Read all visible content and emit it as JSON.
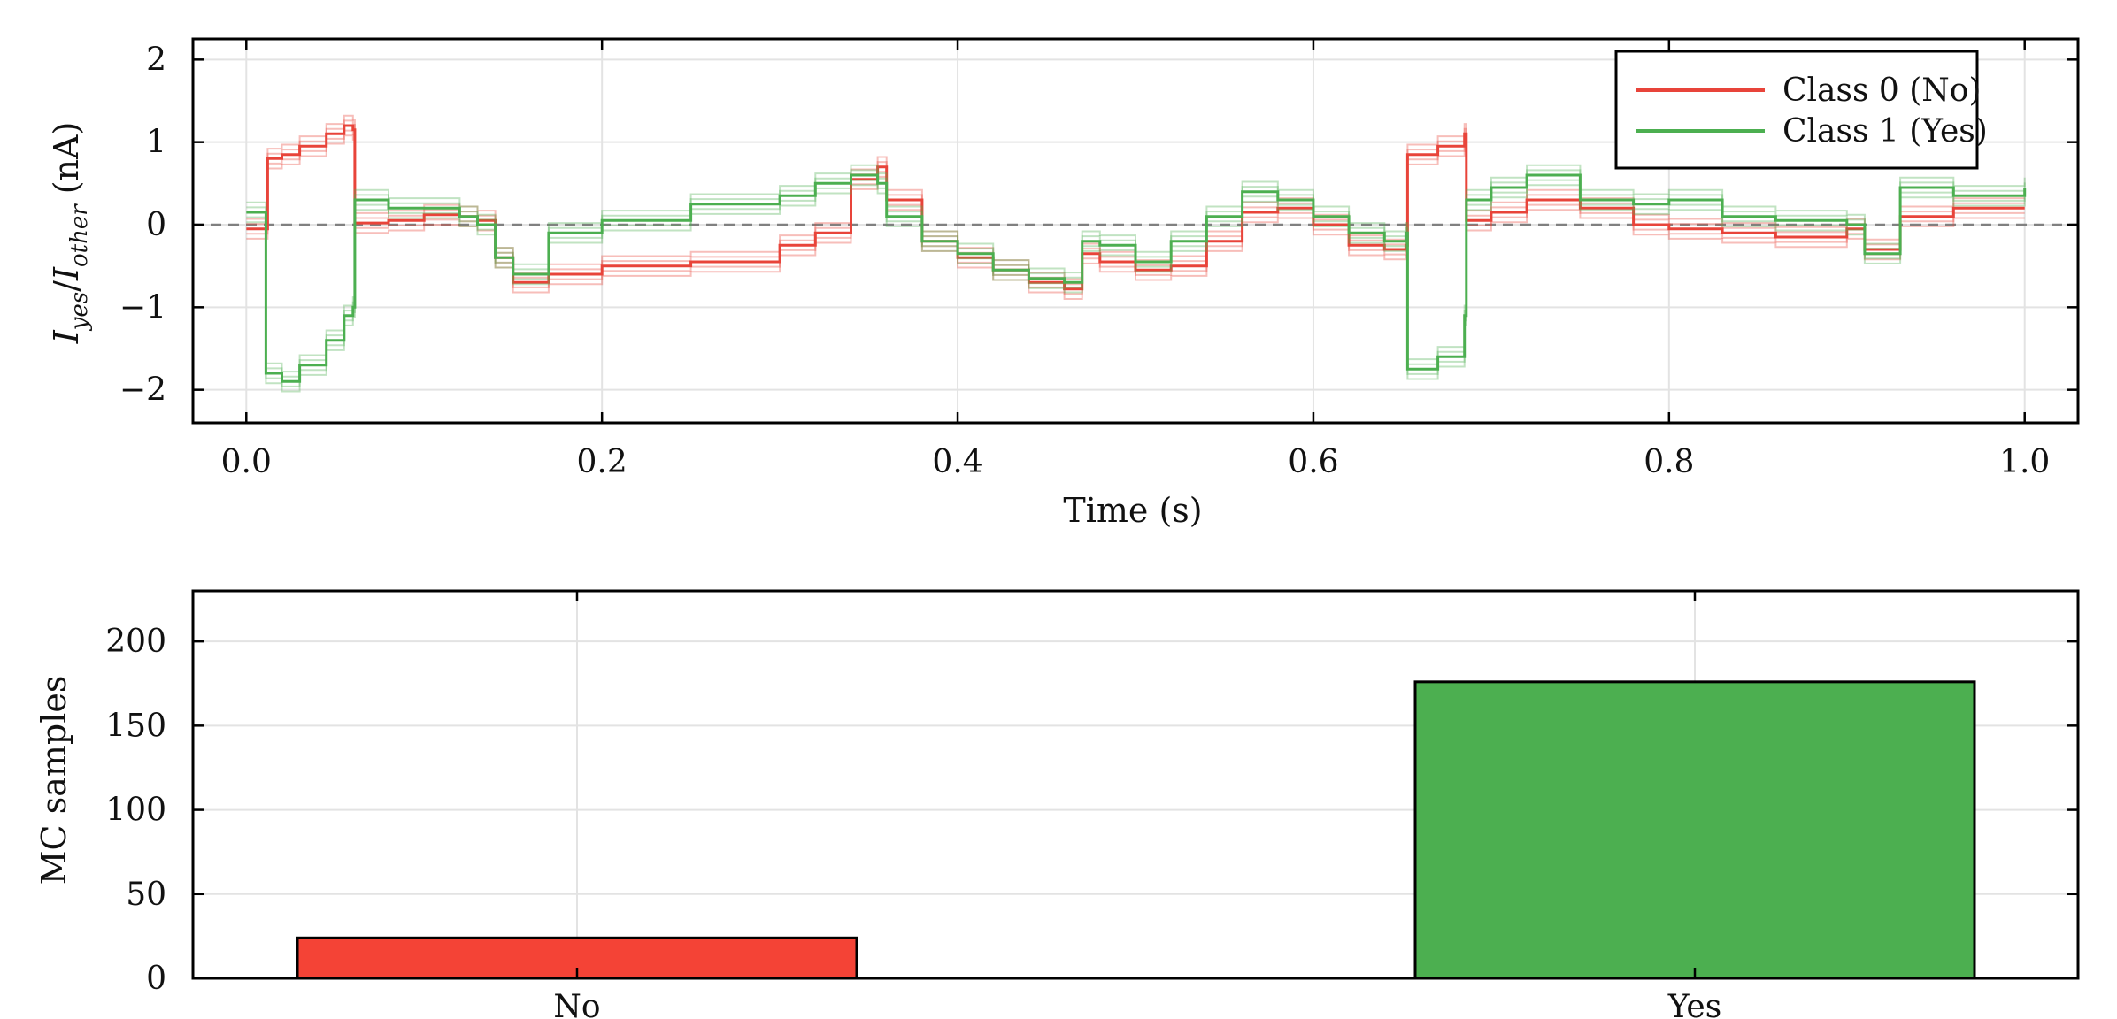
{
  "chart_data": [
    {
      "type": "line",
      "xlabel": "Time (s)",
      "ylabel": {
        "base1": "I",
        "sub1": "yes",
        "slash": "/",
        "base2": "I",
        "sub2": "other",
        "unit": " (nA)"
      },
      "xlim": [
        -0.03,
        1.03
      ],
      "ylim": [
        -2.4,
        2.25
      ],
      "xticks": [
        0.0,
        0.2,
        0.4,
        0.6,
        0.8,
        1.0
      ],
      "xtick_labels": [
        "0.0",
        "0.2",
        "0.4",
        "0.6",
        "0.8",
        "1.0"
      ],
      "yticks": [
        -2,
        -1,
        0,
        1,
        2
      ],
      "ytick_labels": [
        "−2",
        "−1",
        "0",
        "1",
        "2"
      ],
      "grid": true,
      "reference_line": {
        "y": 0,
        "style": "dashed",
        "color": "#808080"
      },
      "legend": {
        "position": "top-right",
        "entries": [
          "Class 0 (No)",
          "Class 1 (Yes)"
        ]
      },
      "series": [
        {
          "name": "Class 0 (No)",
          "color": "#e8443a",
          "x": [
            0.0,
            0.011,
            0.012,
            0.02,
            0.03,
            0.045,
            0.055,
            0.06,
            0.061,
            0.08,
            0.1,
            0.12,
            0.13,
            0.14,
            0.15,
            0.17,
            0.2,
            0.25,
            0.3,
            0.32,
            0.34,
            0.355,
            0.36,
            0.38,
            0.4,
            0.42,
            0.44,
            0.46,
            0.47,
            0.48,
            0.5,
            0.52,
            0.54,
            0.56,
            0.58,
            0.6,
            0.62,
            0.64,
            0.652,
            0.653,
            0.67,
            0.685,
            0.686,
            0.7,
            0.72,
            0.75,
            0.78,
            0.8,
            0.83,
            0.86,
            0.9,
            0.91,
            0.93,
            0.96,
            1.0
          ],
          "y": [
            -0.05,
            -0.05,
            0.8,
            0.85,
            0.95,
            1.1,
            1.2,
            1.15,
            0.02,
            0.05,
            0.12,
            0.1,
            0.05,
            -0.4,
            -0.7,
            -0.6,
            -0.5,
            -0.45,
            -0.25,
            -0.1,
            0.55,
            0.7,
            0.3,
            -0.2,
            -0.4,
            -0.55,
            -0.7,
            -0.78,
            -0.35,
            -0.45,
            -0.55,
            -0.5,
            -0.2,
            0.15,
            0.2,
            0.0,
            -0.25,
            -0.3,
            -0.25,
            0.85,
            0.95,
            1.1,
            0.05,
            0.15,
            0.3,
            0.2,
            0.0,
            -0.05,
            -0.1,
            -0.15,
            -0.05,
            -0.3,
            0.1,
            0.2,
            0.2
          ]
        },
        {
          "name": "Class 1 (Yes)",
          "color": "#4caf50",
          "x": [
            0.0,
            0.01,
            0.011,
            0.02,
            0.03,
            0.045,
            0.055,
            0.06,
            0.061,
            0.08,
            0.1,
            0.12,
            0.13,
            0.14,
            0.15,
            0.17,
            0.2,
            0.25,
            0.3,
            0.32,
            0.34,
            0.355,
            0.36,
            0.38,
            0.4,
            0.42,
            0.44,
            0.46,
            0.47,
            0.48,
            0.5,
            0.52,
            0.54,
            0.56,
            0.58,
            0.6,
            0.62,
            0.64,
            0.652,
            0.653,
            0.67,
            0.685,
            0.686,
            0.7,
            0.72,
            0.75,
            0.78,
            0.8,
            0.83,
            0.86,
            0.9,
            0.91,
            0.93,
            0.96,
            1.0
          ],
          "y": [
            0.15,
            0.15,
            -1.8,
            -1.9,
            -1.7,
            -1.4,
            -1.1,
            -1.0,
            0.3,
            0.2,
            0.2,
            0.1,
            0.0,
            -0.4,
            -0.6,
            -0.1,
            0.05,
            0.25,
            0.35,
            0.5,
            0.6,
            0.5,
            0.1,
            -0.2,
            -0.35,
            -0.55,
            -0.65,
            -0.7,
            -0.2,
            -0.25,
            -0.45,
            -0.2,
            0.1,
            0.4,
            0.3,
            0.1,
            -0.1,
            -0.2,
            -0.1,
            -1.75,
            -1.6,
            -1.1,
            0.3,
            0.45,
            0.6,
            0.3,
            0.25,
            0.3,
            0.1,
            0.05,
            0.0,
            -0.35,
            0.45,
            0.35,
            0.45
          ]
        }
      ]
    },
    {
      "type": "bar",
      "categories": [
        "No",
        "Yes"
      ],
      "values": [
        24,
        176
      ],
      "colors": [
        "#f44336",
        "#4caf50"
      ],
      "ylabel": "MC samples",
      "ylim": [
        0,
        230
      ],
      "yticks": [
        0,
        50,
        100,
        150,
        200
      ],
      "ytick_labels": [
        "0",
        "50",
        "100",
        "150",
        "200"
      ],
      "grid": true
    }
  ]
}
